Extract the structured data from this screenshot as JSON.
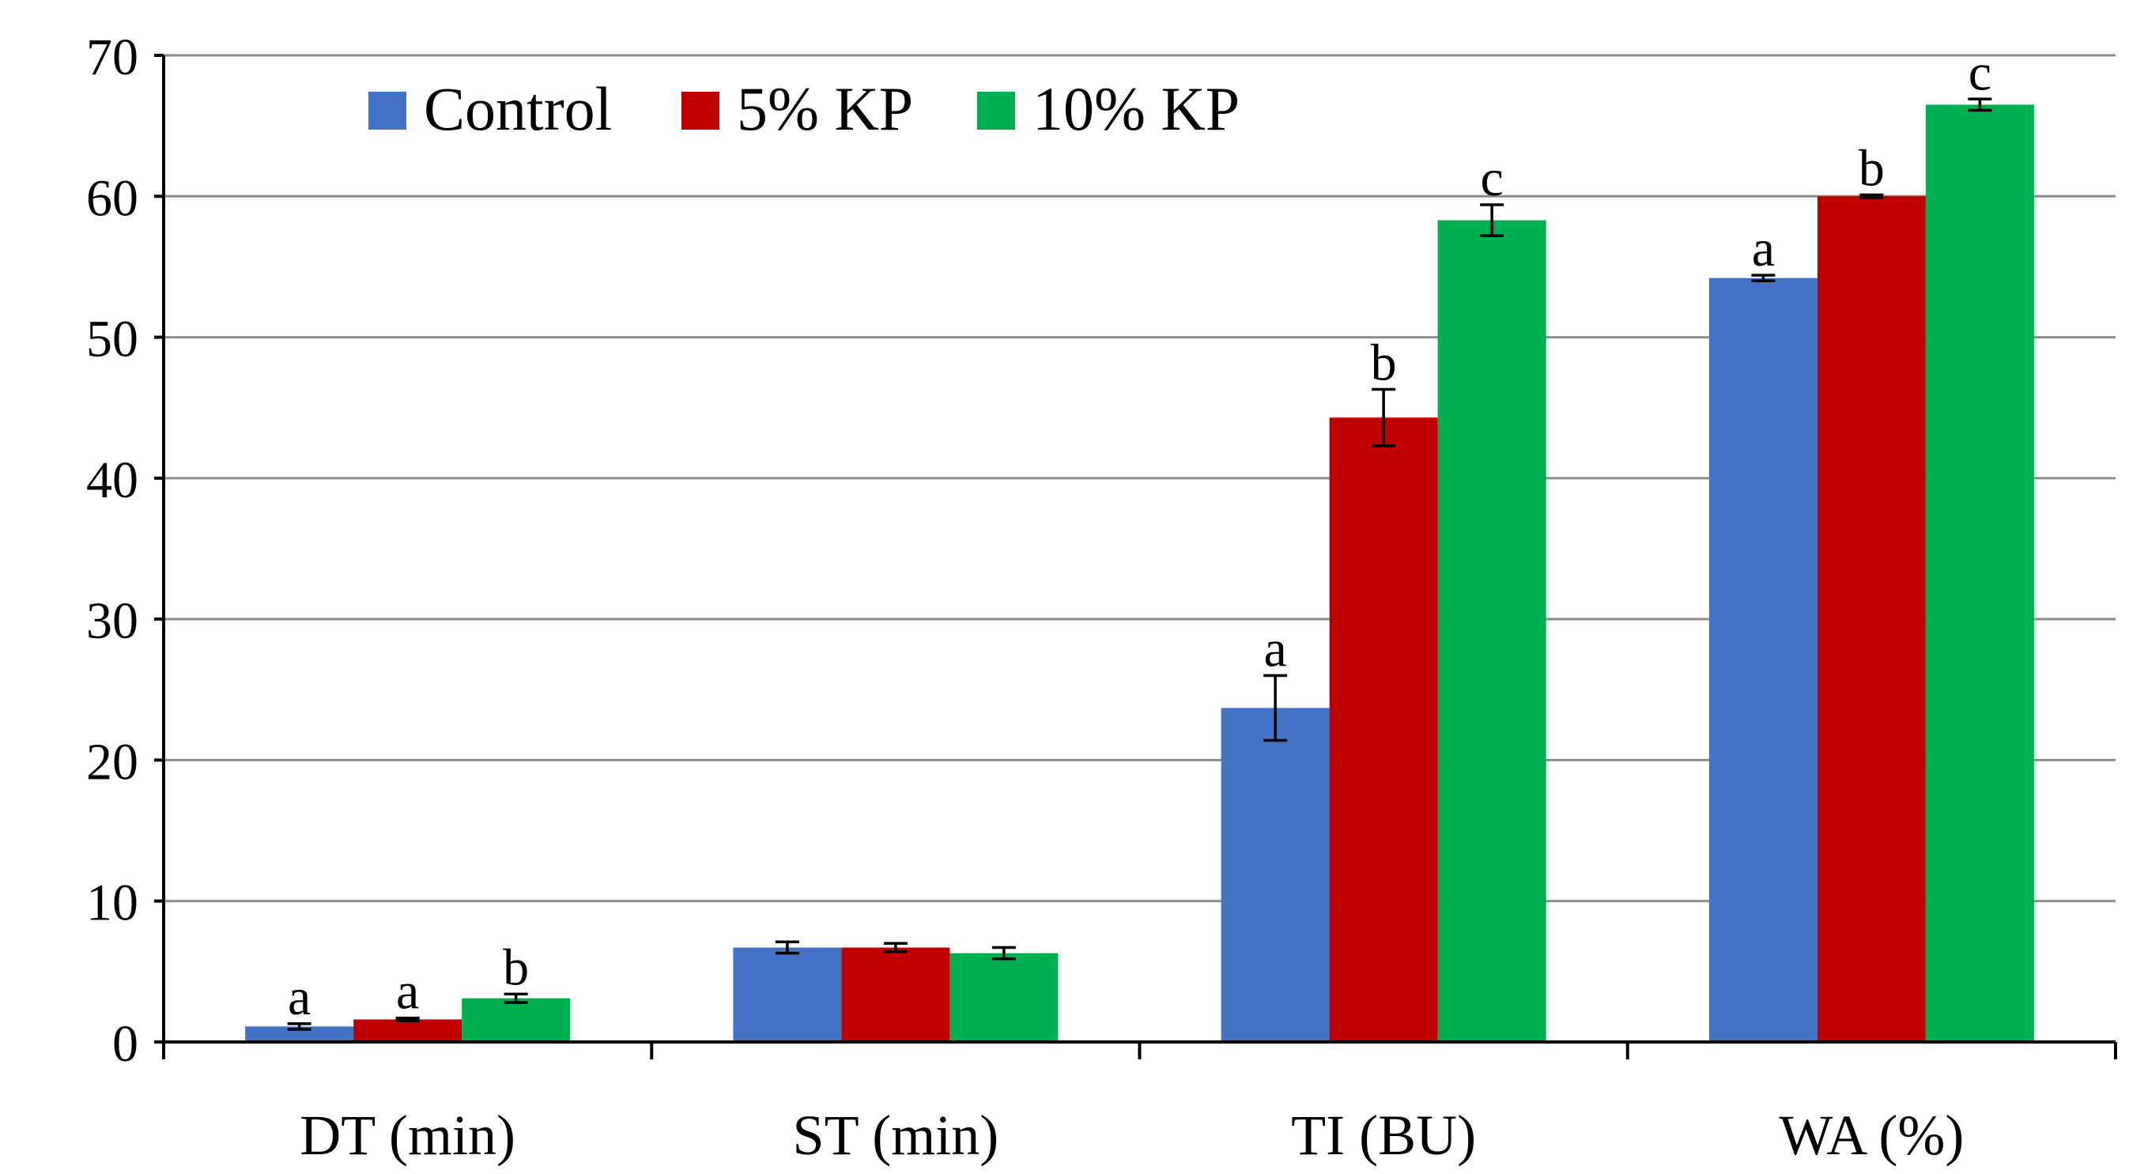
{
  "chart_data": {
    "type": "bar",
    "title": "",
    "xlabel": "",
    "ylabel": "",
    "ylim": [
      0,
      70
    ],
    "yticks": [
      0,
      10,
      20,
      30,
      40,
      50,
      60,
      70
    ],
    "ytick_labels": [
      "0",
      "10",
      "20",
      "30",
      "40",
      "50",
      "60",
      "70"
    ],
    "grid": true,
    "legend_position": "top-left",
    "categories": [
      "DT (min)",
      "ST (min)",
      "TI (BU)",
      "WA (%)"
    ],
    "series": [
      {
        "name": "Control",
        "color": "#4472C4",
        "values": [
          1.1,
          6.7,
          23.7,
          54.2
        ],
        "errors": [
          0.2,
          0.4,
          2.3,
          0.2
        ],
        "labels": [
          "a",
          "",
          "a",
          "a"
        ]
      },
      {
        "name": "5% KP",
        "color": "#C00000",
        "values": [
          1.6,
          6.7,
          44.3,
          60.0
        ],
        "errors": [
          0.1,
          0.3,
          2.0,
          0.1
        ],
        "labels": [
          "a",
          "",
          "b",
          "b"
        ]
      },
      {
        "name": "10% KP",
        "color": "#00B050",
        "values": [
          3.1,
          6.3,
          58.3,
          66.5
        ],
        "errors": [
          0.3,
          0.4,
          1.1,
          0.4
        ],
        "labels": [
          "b",
          "",
          "c",
          "c"
        ]
      }
    ]
  }
}
